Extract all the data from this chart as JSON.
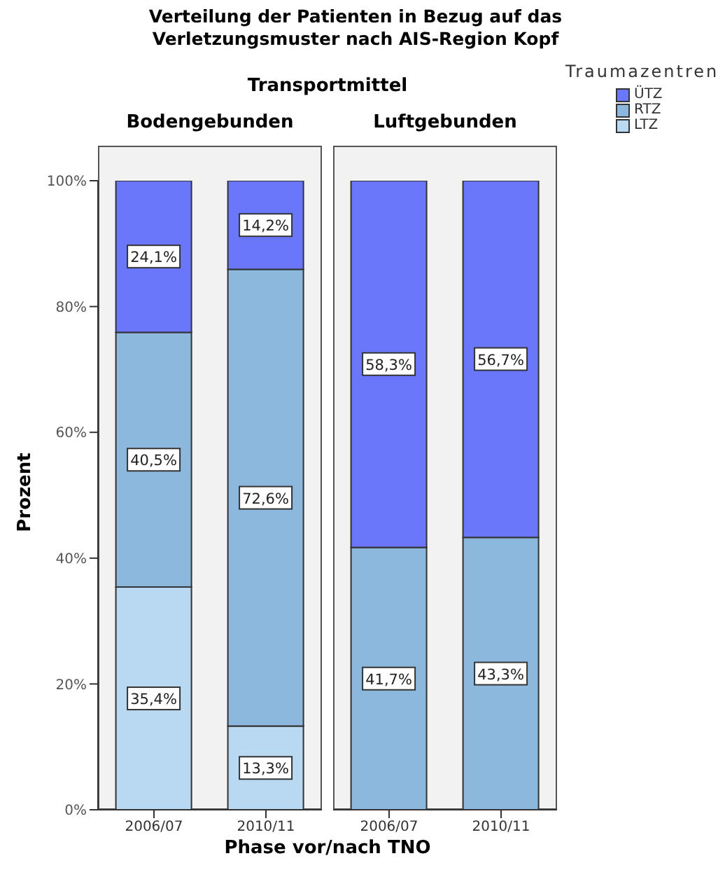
{
  "chart_data": [
    {
      "type": "bar",
      "title": "Bodengebunden",
      "annotations": [
        "Verteilung der Patienten in Bezug auf das Verletzungsmuster nach AIS-Region Kopf",
        "Transportmittel"
      ],
      "xlabel": "Phase vor/nach TNO",
      "ylabel": "Prozent",
      "categories": [
        "2006/07",
        "2010/11"
      ],
      "stacked": true,
      "series": [
        {
          "name": "LTZ",
          "color": "#b9d9f2",
          "values": [
            35.4,
            13.3
          ],
          "value_labels": [
            "35,4%",
            "13,3%"
          ]
        },
        {
          "name": "RTZ",
          "color": "#8db8de",
          "values": [
            40.5,
            72.6
          ],
          "value_labels": [
            "40,5%",
            "72,6%"
          ]
        },
        {
          "name": "ÜTZ",
          "color": "#6b77fb",
          "values": [
            24.1,
            14.2
          ],
          "value_labels": [
            "24,1%",
            "14,2%"
          ]
        }
      ],
      "ylim": [
        0,
        100
      ],
      "yticks": [
        {
          "value": 0,
          "label": "0%"
        },
        {
          "value": 20,
          "label": "20%"
        },
        {
          "value": 40,
          "label": "40%"
        },
        {
          "value": 60,
          "label": "60%"
        },
        {
          "value": 80,
          "label": "80%"
        },
        {
          "value": 100,
          "label": "100%"
        }
      ],
      "grid": false,
      "legend": "top right",
      "legend_title": "Traumazentren"
    },
    {
      "type": "bar",
      "title": "Luftgebunden",
      "categories": [
        "2006/07",
        "2010/11"
      ],
      "stacked": true,
      "series": [
        {
          "color": "#b9d9f2",
          "values": [
            null,
            null
          ],
          "value_labels": [
            null,
            null
          ]
        },
        {
          "color": "#8db8de",
          "values": [
            41.7,
            43.3
          ],
          "value_labels": [
            "41,7%",
            "43,3%"
          ]
        },
        {
          "color": "#6b77fb",
          "values": [
            58.3,
            56.7
          ],
          "value_labels": [
            "58,3%",
            "56,7%"
          ]
        }
      ],
      "ylim": [
        0,
        100
      ],
      "tick_labels": "x",
      "grid": false
    }
  ]
}
